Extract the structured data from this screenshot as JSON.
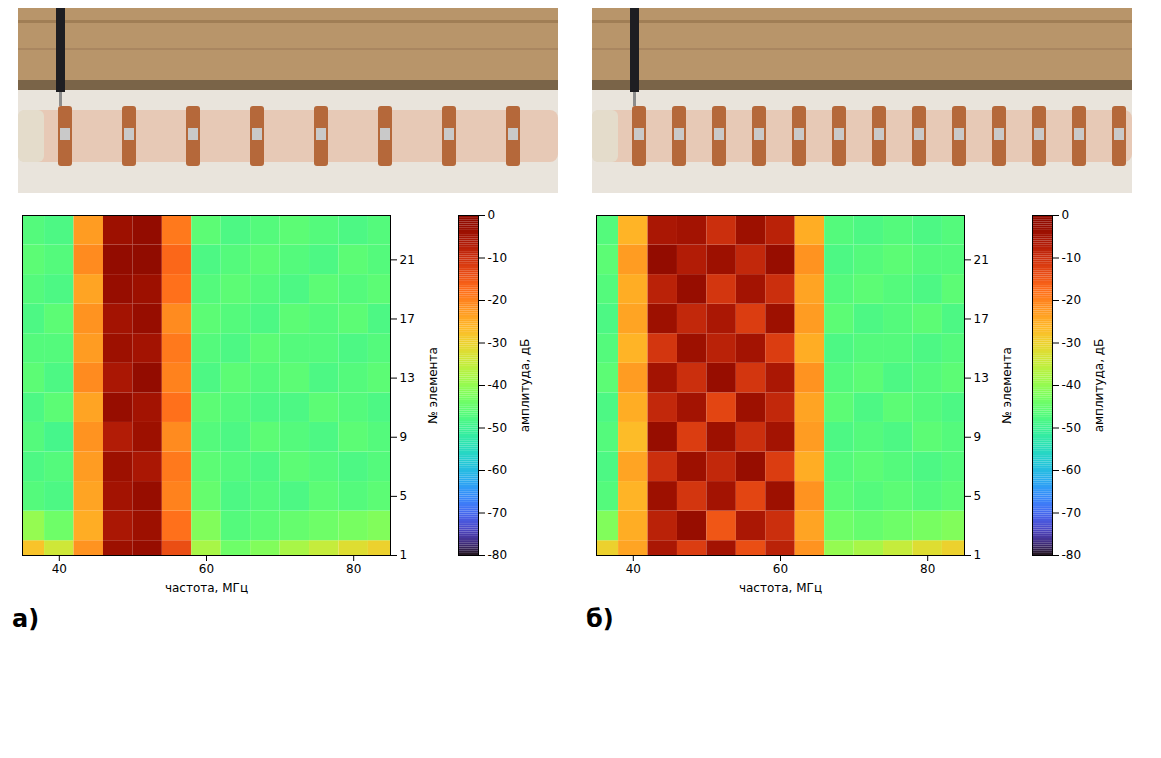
{
  "chart_data": [
    {
      "type": "heatmap",
      "title": "а)",
      "x_label": "частота, МГц",
      "y_label": "№ элемента",
      "z_label": "амплитуда, дБ",
      "xlim": [
        35,
        85
      ],
      "xticks": [
        40,
        60,
        80
      ],
      "ylim": [
        1,
        24
      ],
      "yticks": [
        1,
        5,
        9,
        13,
        17,
        21
      ],
      "x": [
        36,
        40,
        44,
        48,
        52,
        56,
        60,
        64,
        68,
        72,
        76,
        80,
        84
      ],
      "y": [
        1,
        3,
        5,
        7,
        9,
        11,
        13,
        15,
        17,
        19,
        21,
        23
      ],
      "values": [
        [
          -28,
          -34,
          -22,
          -4,
          -3,
          -14,
          -38,
          -44,
          -42,
          -38,
          -35,
          -32,
          -30
        ],
        [
          -40,
          -44,
          -25,
          -6,
          -4,
          -18,
          -42,
          -47,
          -46,
          -45,
          -44,
          -43,
          -42
        ],
        [
          -47,
          -48,
          -24,
          -5,
          -3,
          -20,
          -45,
          -48,
          -47,
          -48,
          -46,
          -47,
          -46
        ],
        [
          -48,
          -47,
          -23,
          -4,
          -6,
          -19,
          -46,
          -47,
          -48,
          -46,
          -47,
          -48,
          -47
        ],
        [
          -47,
          -49,
          -22,
          -7,
          -4,
          -21,
          -47,
          -48,
          -46,
          -47,
          -48,
          -46,
          -47
        ],
        [
          -48,
          -46,
          -24,
          -3,
          -5,
          -18,
          -46,
          -47,
          -48,
          -48,
          -46,
          -47,
          -48
        ],
        [
          -46,
          -48,
          -21,
          -6,
          -2,
          -20,
          -48,
          -46,
          -47,
          -46,
          -48,
          -47,
          -46
        ],
        [
          -47,
          -47,
          -23,
          -4,
          -5,
          -19,
          -47,
          -48,
          -46,
          -47,
          -47,
          -48,
          -47
        ],
        [
          -48,
          -46,
          -22,
          -5,
          -3,
          -21,
          -46,
          -47,
          -48,
          -46,
          -47,
          -46,
          -48
        ],
        [
          -47,
          -48,
          -24,
          -3,
          -4,
          -18,
          -47,
          -46,
          -47,
          -48,
          -46,
          -47,
          -46
        ],
        [
          -46,
          -47,
          -21,
          -2,
          -1,
          -17,
          -48,
          -47,
          -46,
          -47,
          -48,
          -46,
          -47
        ],
        [
          -47,
          -48,
          -23,
          -4,
          -2,
          -19,
          -46,
          -48,
          -47,
          -46,
          -47,
          -48,
          -47
        ]
      ],
      "colorbar_range": [
        -80,
        0
      ],
      "colorbar_ticks": [
        0,
        -10,
        -20,
        -30,
        -40,
        -50,
        -60,
        -70,
        -80
      ]
    },
    {
      "type": "heatmap",
      "title": "б)",
      "x_label": "частота, МГц",
      "y_label": "№ элемента",
      "z_label": "амплитуда, дБ",
      "xlim": [
        35,
        85
      ],
      "xticks": [
        40,
        60,
        80
      ],
      "ylim": [
        1,
        24
      ],
      "yticks": [
        1,
        5,
        9,
        13,
        17,
        21
      ],
      "x": [
        36,
        40,
        44,
        48,
        52,
        56,
        60,
        64,
        68,
        72,
        76,
        80,
        84
      ],
      "y": [
        1,
        3,
        5,
        7,
        9,
        11,
        13,
        15,
        17,
        19,
        21,
        23
      ],
      "values": [
        [
          -30,
          -24,
          -6,
          -12,
          -5,
          -14,
          -8,
          -22,
          -40,
          -38,
          -35,
          -32,
          -30
        ],
        [
          -42,
          -25,
          -8,
          -3,
          -15,
          -6,
          -10,
          -24,
          -44,
          -45,
          -44,
          -43,
          -42
        ],
        [
          -47,
          -26,
          -4,
          -11,
          -5,
          -13,
          -4,
          -22,
          -46,
          -47,
          -46,
          -47,
          -46
        ],
        [
          -48,
          -24,
          -10,
          -4,
          -9,
          -3,
          -12,
          -25,
          -47,
          -46,
          -47,
          -48,
          -47
        ],
        [
          -47,
          -27,
          -3,
          -12,
          -4,
          -10,
          -5,
          -23,
          -48,
          -47,
          -48,
          -46,
          -47
        ],
        [
          -48,
          -25,
          -9,
          -5,
          -13,
          -4,
          -9,
          -24,
          -46,
          -48,
          -46,
          -47,
          -48
        ],
        [
          -46,
          -23,
          -5,
          -10,
          -3,
          -11,
          -6,
          -22,
          -47,
          -46,
          -48,
          -47,
          -46
        ],
        [
          -47,
          -26,
          -11,
          -4,
          -8,
          -5,
          -12,
          -25,
          -48,
          -47,
          -47,
          -48,
          -47
        ],
        [
          -48,
          -24,
          -4,
          -9,
          -6,
          -12,
          -4,
          -23,
          -46,
          -48,
          -47,
          -46,
          -48
        ],
        [
          -47,
          -25,
          -8,
          -3,
          -11,
          -5,
          -10,
          -24,
          -47,
          -46,
          -47,
          -48,
          -46
        ],
        [
          -46,
          -23,
          -2,
          -7,
          -4,
          -9,
          -3,
          -22,
          -48,
          -47,
          -46,
          -47,
          -47
        ],
        [
          -47,
          -26,
          -6,
          -5,
          -10,
          -4,
          -8,
          -25,
          -47,
          -48,
          -47,
          -48,
          -47
        ]
      ],
      "colorbar_range": [
        -80,
        0
      ],
      "colorbar_ticks": [
        0,
        -10,
        -20,
        -30,
        -40,
        -50,
        -60,
        -70,
        -80
      ]
    }
  ]
}
